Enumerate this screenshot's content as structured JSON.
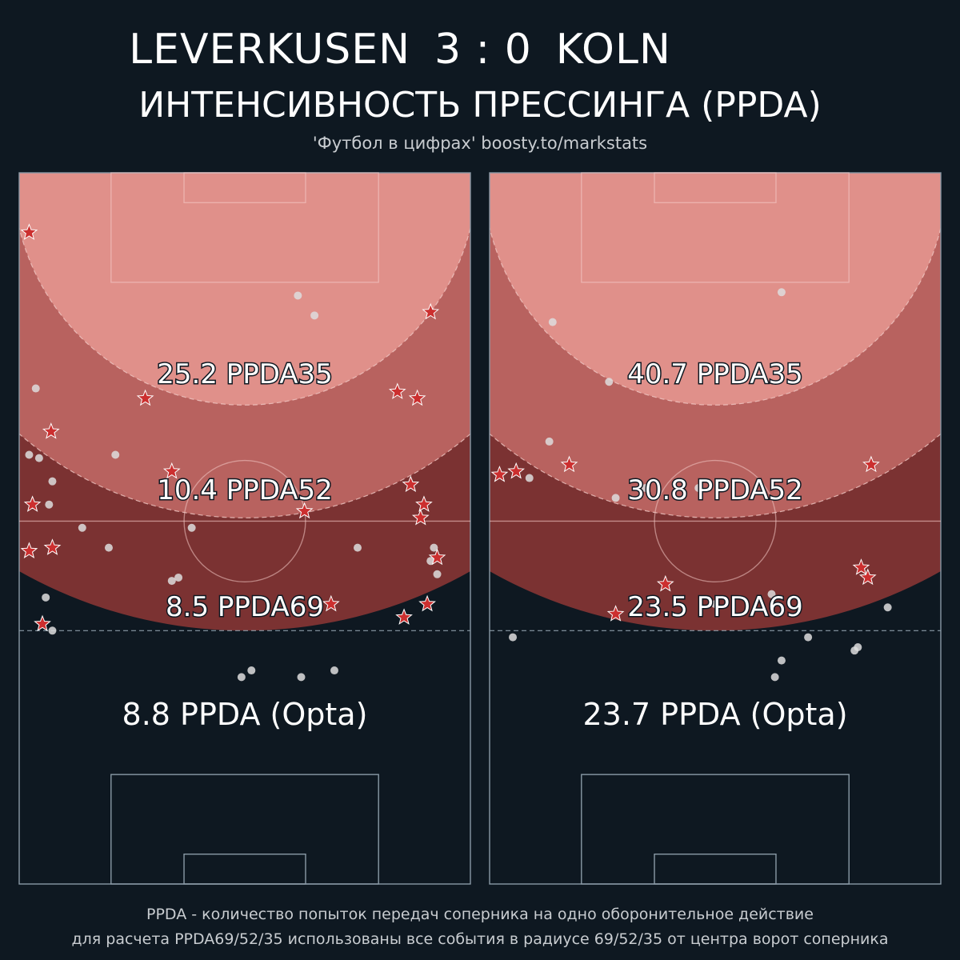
{
  "header": {
    "home_team": "LEVERKUSEN",
    "score": "3 : 0",
    "away_team": "KOLN",
    "subtitle": "ИНТЕНСИВНОСТЬ ПРЕССИНГА (PPDA)",
    "source": "'Футбол в цифрах' boosty.to/markstats"
  },
  "footnote": {
    "line1": "PPDA - количество попыток передач соперника на одно оборонительное действие",
    "line2": "для расчета PPDA69/52/35 использованы все события в радиусе 69/52/35 от центра ворот соперника"
  },
  "colors": {
    "background": "#0e1821",
    "zone35": "#e0908a",
    "zone52": "#b8625f",
    "zone69": "#7b3232",
    "star": "#cc2f2f",
    "dot": "#dddddd",
    "pitch_line": "#8a9aa6"
  },
  "chart_data": [
    {
      "type": "scatter",
      "team": "LEVERKUSEN",
      "zones": [
        {
          "label": "25.2 PPDA35",
          "value": 25.2,
          "radius": 35
        },
        {
          "label": "10.4 PPDA52",
          "value": 10.4,
          "radius": 52
        },
        {
          "label": "8.5 PPDA69",
          "value": 8.5,
          "radius": 69
        }
      ],
      "overall_label": "8.8 PPDA (Opta)",
      "overall": 8.8,
      "stars": [
        [
          1.5,
          96
        ],
        [
          62,
          84
        ],
        [
          57,
          72
        ],
        [
          60,
          71
        ],
        [
          4.8,
          66
        ],
        [
          19,
          71
        ],
        [
          23,
          60
        ],
        [
          2,
          55
        ],
        [
          59,
          58
        ],
        [
          61,
          55
        ],
        [
          60.5,
          53
        ],
        [
          1.5,
          48
        ],
        [
          5,
          48.5
        ],
        [
          63,
          47
        ],
        [
          47,
          40
        ],
        [
          58,
          38
        ],
        [
          61.5,
          40
        ],
        [
          3.5,
          37
        ],
        [
          43,
          54
        ]
      ],
      "dots": [
        [
          42,
          86.5
        ],
        [
          44.5,
          83.5
        ],
        [
          2.5,
          72.5
        ],
        [
          1.5,
          62.5
        ],
        [
          3,
          62
        ],
        [
          5,
          58.5
        ],
        [
          14.5,
          62.5
        ],
        [
          4.5,
          55
        ],
        [
          9.5,
          51.5
        ],
        [
          26,
          51.5
        ],
        [
          13.5,
          48.5
        ],
        [
          51,
          48.5
        ],
        [
          62.5,
          48.5
        ],
        [
          62,
          46.5
        ],
        [
          63,
          44.5
        ],
        [
          24,
          44
        ],
        [
          23,
          43.5
        ],
        [
          4,
          41
        ],
        [
          5,
          36
        ],
        [
          35,
          30
        ],
        [
          47.5,
          30
        ],
        [
          33.5,
          29
        ],
        [
          42.5,
          29
        ]
      ]
    },
    {
      "type": "scatter",
      "team": "KOLN",
      "zones": [
        {
          "label": "40.7 PPDA35",
          "value": 40.7,
          "radius": 35
        },
        {
          "label": "30.8 PPDA52",
          "value": 30.8,
          "radius": 52
        },
        {
          "label": "23.5 PPDA69",
          "value": 23.5,
          "radius": 69
        }
      ],
      "overall_label": "23.7 PPDA (Opta)",
      "overall": 23.7,
      "stars": [
        [
          57.5,
          61
        ],
        [
          12,
          61
        ],
        [
          4,
          60
        ],
        [
          1.5,
          59.5
        ],
        [
          56,
          45.5
        ],
        [
          57,
          44
        ],
        [
          26.5,
          43
        ],
        [
          19,
          38.5
        ]
      ],
      "dots": [
        [
          44,
          87
        ],
        [
          9.5,
          82.5
        ],
        [
          18,
          73.5
        ],
        [
          9,
          64.5
        ],
        [
          6,
          59
        ],
        [
          23.5,
          57.5
        ],
        [
          31.5,
          57.5
        ],
        [
          19,
          56
        ],
        [
          42.5,
          41.5
        ],
        [
          34,
          40
        ],
        [
          60,
          39.5
        ],
        [
          48,
          35
        ],
        [
          3.5,
          35
        ],
        [
          55.5,
          33.5
        ],
        [
          55,
          33
        ],
        [
          44,
          31.5
        ],
        [
          43,
          29
        ]
      ]
    }
  ]
}
